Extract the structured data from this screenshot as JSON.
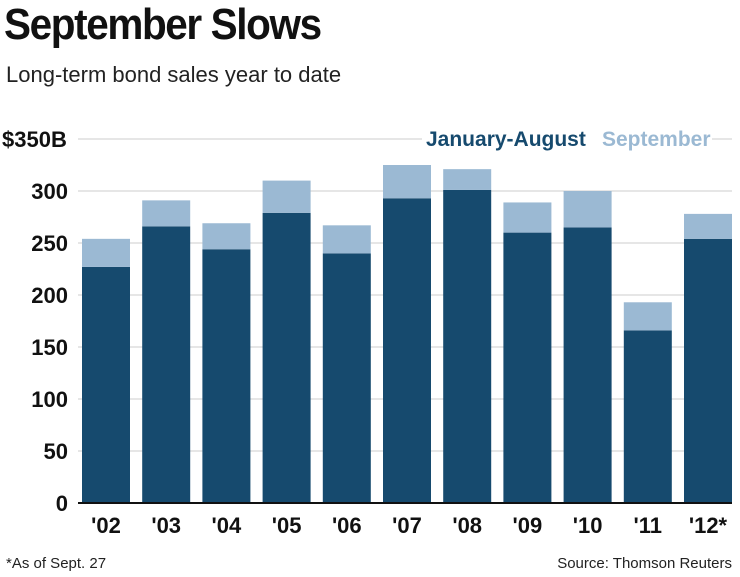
{
  "title": "September Slows",
  "subtitle": "Long-term bond sales year to date",
  "footnote": "*As of Sept. 27",
  "source": "Source: Thomson Reuters",
  "colors": {
    "january_august": "#164a6e",
    "september": "#9bb9d3",
    "grid": "#cccccc",
    "axis": "#111111"
  },
  "chart_data": {
    "type": "bar",
    "stacked": true,
    "categories": [
      "'02",
      "'03",
      "'04",
      "'05",
      "'06",
      "'07",
      "'08",
      "'09",
      "'10",
      "'11",
      "'12*"
    ],
    "series": [
      {
        "name": "January-August",
        "values": [
          227,
          266,
          244,
          279,
          240,
          293,
          301,
          260,
          265,
          166,
          254
        ]
      },
      {
        "name": "September",
        "values": [
          27,
          25,
          25,
          31,
          27,
          32,
          20,
          29,
          35,
          27,
          24
        ]
      }
    ],
    "ylim": [
      0,
      350
    ],
    "yticks": [
      0,
      50,
      100,
      150,
      200,
      250,
      300,
      350
    ],
    "ytick_labels": [
      "0",
      "50",
      "100",
      "150",
      "200",
      "250",
      "300",
      "$350B"
    ],
    "xlabel": "",
    "ylabel": "",
    "legend_position": "top-right",
    "grid": true
  }
}
